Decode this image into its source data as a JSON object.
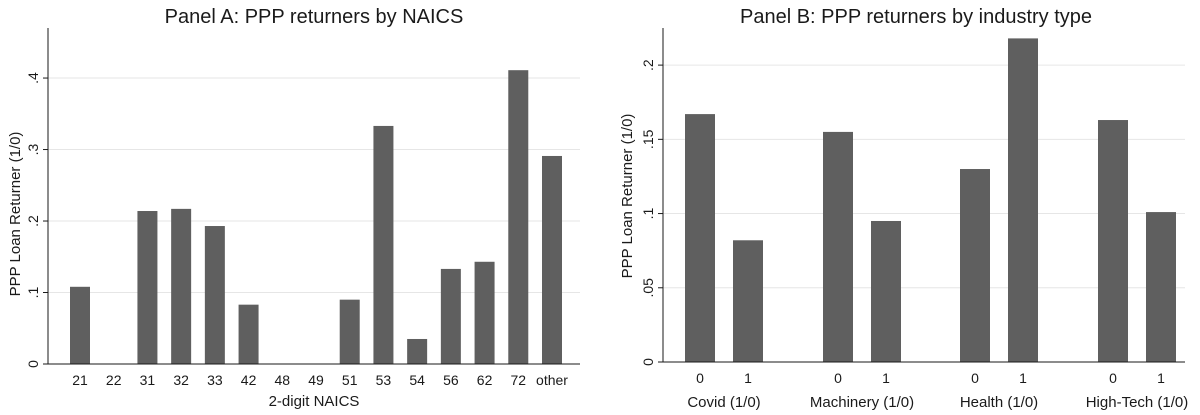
{
  "colors": {
    "bar": "#5f5f5f",
    "grid": "#e6e6e6",
    "axis": "#1a1a1a",
    "background": "#ffffff"
  },
  "chart_data": [
    {
      "type": "bar",
      "title": "Panel A: PPP returners by NAICS",
      "xlabel": "2-digit NAICS",
      "ylabel": "PPP Loan Returner (1/0)",
      "ylim": [
        0,
        0.47
      ],
      "yticks": [
        0,
        0.1,
        0.2,
        0.3,
        0.4
      ],
      "ytick_labels": [
        "0",
        ".1",
        ".2",
        ".3",
        ".4"
      ],
      "grid": true,
      "categories": [
        "21",
        "22",
        "31",
        "32",
        "33",
        "42",
        "48",
        "49",
        "51",
        "53",
        "54",
        "56",
        "62",
        "72",
        "other"
      ],
      "values": [
        0.108,
        0,
        0.214,
        0.217,
        0.193,
        0.083,
        0,
        0,
        0.09,
        0.333,
        0.035,
        0.133,
        0.143,
        0.411,
        0.291
      ]
    },
    {
      "type": "bar",
      "title": "Panel B: PPP returners by industry type",
      "xlabel": "",
      "ylabel": "PPP Loan Returner (1/0)",
      "ylim": [
        0,
        0.225
      ],
      "yticks": [
        0,
        0.05,
        0.1,
        0.15,
        0.2
      ],
      "ytick_labels": [
        "0",
        ".05",
        ".1",
        ".15",
        ".2"
      ],
      "grid": true,
      "groups": [
        {
          "name": "Covid (1/0)",
          "categories": [
            "0",
            "1"
          ],
          "values": [
            0.167,
            0.082
          ]
        },
        {
          "name": "Machinery (1/0)",
          "categories": [
            "0",
            "1"
          ],
          "values": [
            0.155,
            0.095
          ]
        },
        {
          "name": "Health (1/0)",
          "categories": [
            "0",
            "1"
          ],
          "values": [
            0.13,
            0.218
          ]
        },
        {
          "name": "High-Tech (1/0)",
          "categories": [
            "0",
            "1"
          ],
          "values": [
            0.163,
            0.101
          ]
        }
      ]
    }
  ]
}
